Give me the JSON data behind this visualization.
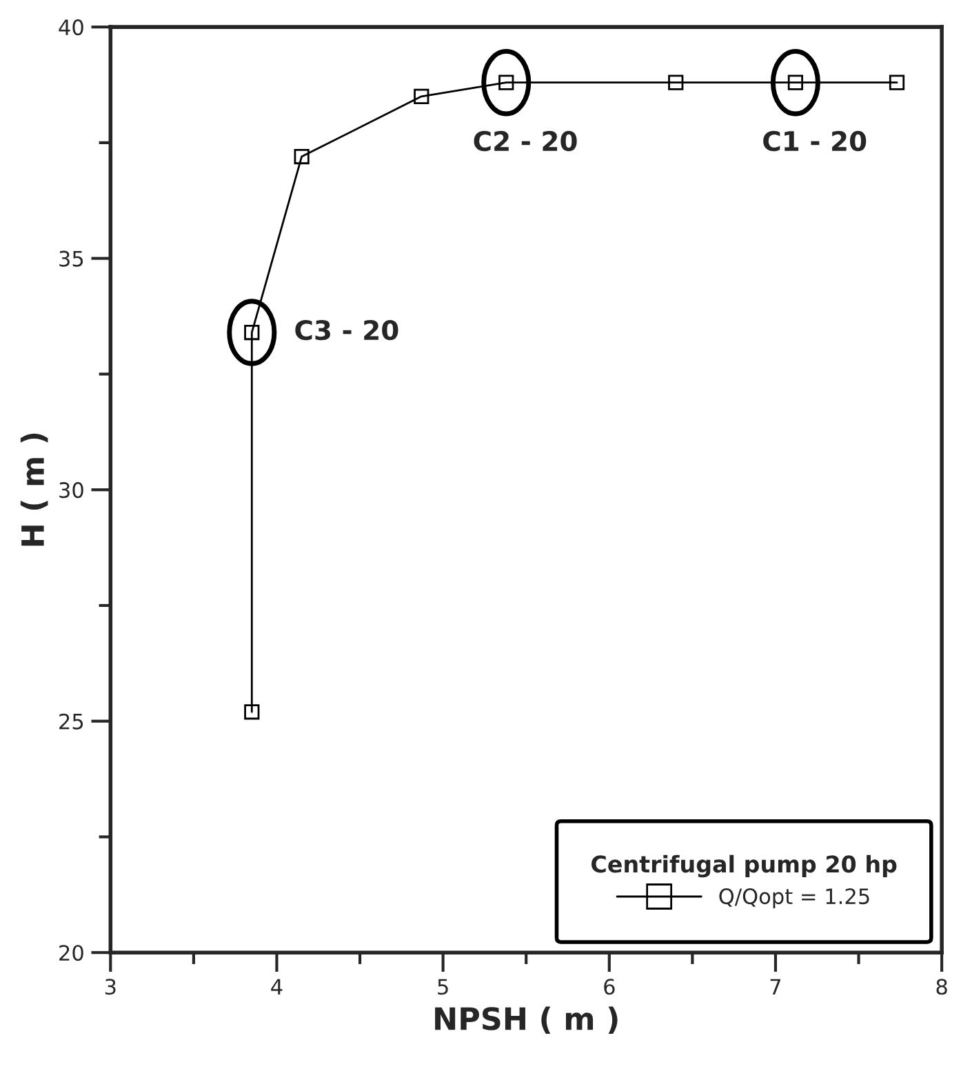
{
  "chart_data": {
    "type": "line",
    "xlabel": "NPSH ( m )",
    "ylabel": "H ( m )",
    "legend_title": "Centrifugal pump 20 hp",
    "x": [
      3.85,
      3.85,
      4.15,
      4.87,
      5.38,
      6.4,
      7.12,
      7.73
    ],
    "series": [
      {
        "name": "Q/Qopt = 1.25",
        "color": "#000000",
        "values": [
          25.2,
          33.4,
          37.2,
          38.5,
          38.8,
          38.8,
          38.8,
          38.8
        ]
      }
    ],
    "xlim": [
      3,
      8
    ],
    "xticks": [
      3,
      4,
      5,
      6,
      7,
      8
    ],
    "ylim": [
      20,
      40
    ],
    "yticks": [
      20,
      25,
      30,
      35,
      40
    ],
    "marker": "square",
    "line_style": "solid",
    "grid": false,
    "legend": "bottom right",
    "annotations": [
      {
        "text": "C3 - 20",
        "x": 3.85,
        "y": 33.4
      },
      {
        "text": "C2 - 20",
        "x": 5.38,
        "y": 38.8
      },
      {
        "text": "C1 - 20",
        "x": 7.12,
        "y": 38.8
      }
    ]
  }
}
